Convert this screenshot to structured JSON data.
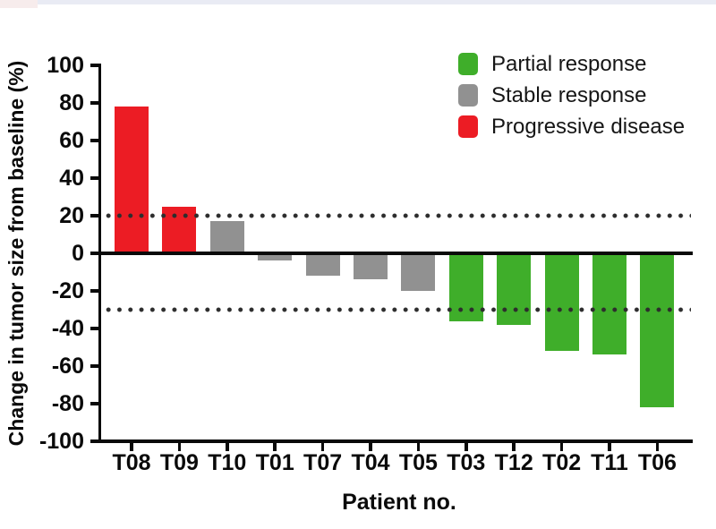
{
  "figure": {
    "background_color": "#ffffff",
    "top_strip_colors": {
      "lavender": "#e9ebf4",
      "pink": "#f7ecec"
    }
  },
  "chart_data": {
    "type": "bar",
    "subtype": "waterfall",
    "title": "",
    "xlabel": "Patient no.",
    "ylabel": "Change in tumor size from baseline (%)",
    "categories": [
      "T08",
      "T09",
      "T10",
      "T01",
      "T07",
      "T04",
      "T05",
      "T03",
      "T12",
      "T02",
      "T11",
      "T06"
    ],
    "values": [
      78,
      25,
      17,
      -4,
      -12,
      -14,
      -20,
      -36,
      -38,
      -52,
      -54,
      -82
    ],
    "responses": [
      "progressive",
      "progressive",
      "stable",
      "stable",
      "stable",
      "stable",
      "stable",
      "partial",
      "partial",
      "partial",
      "partial",
      "partial"
    ],
    "ylim": [
      -100,
      100
    ],
    "ytick_interval": 20,
    "grid": false,
    "reference_lines": [
      {
        "y": 20,
        "style": "dotted"
      },
      {
        "y": -30,
        "style": "dotted"
      }
    ],
    "legend": {
      "position": "top-right",
      "items": [
        {
          "key": "partial",
          "label": "Partial response",
          "color": "#3fae2a"
        },
        {
          "key": "stable",
          "label": "Stable response",
          "color": "#919191"
        },
        {
          "key": "progressive",
          "label": "Progressive disease",
          "color": "#ec1c24"
        }
      ]
    },
    "colors": {
      "partial": "#3fae2a",
      "stable": "#919191",
      "progressive": "#ec1c24",
      "axis": "#0a0a0a",
      "dotted_line": "#2d2d2d"
    }
  }
}
